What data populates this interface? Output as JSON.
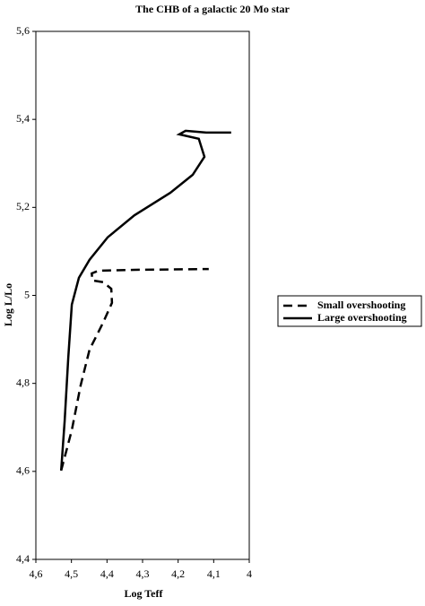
{
  "chart_data": {
    "type": "line",
    "title": "The CHB of a galactic 20 Mo star",
    "x_label": "Log Teff",
    "y_label": "Log L/Lo",
    "xlim": [
      4.6,
      4.0
    ],
    "ylim": [
      4.4,
      5.6
    ],
    "xticks": [
      {
        "value": 4.6,
        "label": "4,6"
      },
      {
        "value": 4.5,
        "label": "4,5"
      },
      {
        "value": 4.4,
        "label": "4,4"
      },
      {
        "value": 4.3,
        "label": "4,3"
      },
      {
        "value": 4.2,
        "label": "4,2"
      },
      {
        "value": 4.1,
        "label": "4,1"
      },
      4
    ],
    "yticks": [
      {
        "value": 4.4,
        "label": "4,4"
      },
      {
        "value": 4.6,
        "label": "4,6"
      },
      {
        "value": 4.8,
        "label": "4,8"
      },
      5,
      {
        "value": 5.2,
        "label": "5,2"
      },
      {
        "value": 5.4,
        "label": "5,4"
      },
      {
        "value": 5.6,
        "label": "5,6"
      }
    ],
    "legend": "right",
    "series": [
      {
        "name": "Small overshooting",
        "color": "#000000",
        "linestyle": "dashed",
        "x": [
          4.529,
          4.499,
          4.474,
          4.449,
          4.411,
          4.386,
          4.388,
          4.411,
          4.441,
          4.443,
          4.424,
          4.323,
          4.114
        ],
        "values": [
          4.602,
          4.694,
          4.796,
          4.877,
          4.938,
          4.983,
          5.015,
          5.03,
          5.034,
          5.05,
          5.056,
          5.058,
          5.06
        ]
      },
      {
        "name": "Large overshooting",
        "color": "#000000",
        "linestyle": "solid",
        "x": [
          4.529,
          4.519,
          4.509,
          4.499,
          4.479,
          4.449,
          4.398,
          4.323,
          4.222,
          4.159,
          4.126,
          4.142,
          4.197,
          4.179,
          4.121,
          4.051
        ],
        "values": [
          4.602,
          4.714,
          4.857,
          4.979,
          5.04,
          5.081,
          5.132,
          5.182,
          5.233,
          5.274,
          5.315,
          5.356,
          5.366,
          5.374,
          5.37,
          5.37
        ]
      }
    ]
  }
}
